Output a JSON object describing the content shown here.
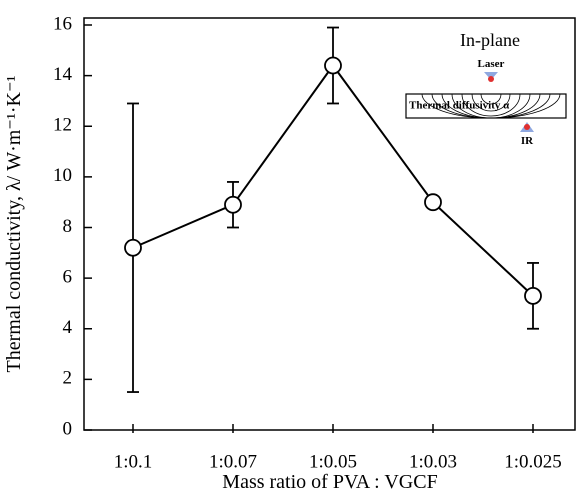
{
  "chart_data": {
    "type": "line",
    "x_label": "Mass ratio of PVA : VGCF",
    "y_label": "Thermal conductivity, λ/ W·m⁻¹·K⁻¹",
    "categories": [
      "1:0.1",
      "1:0.07",
      "1:0.05",
      "1:0.03",
      "1:0.025"
    ],
    "values": [
      7.2,
      8.9,
      14.4,
      9.0,
      5.3
    ],
    "errors": [
      5.7,
      0.9,
      1.5,
      0.2,
      1.3
    ],
    "color": "#000000",
    "ylim": [
      0,
      16
    ],
    "yticks": [
      0,
      2,
      4,
      6,
      8,
      10,
      12,
      14,
      16
    ],
    "inset": {
      "title": "In-plane",
      "source": "Laser",
      "sample": "Thermal  diffusivity α",
      "detector": "IR"
    }
  }
}
